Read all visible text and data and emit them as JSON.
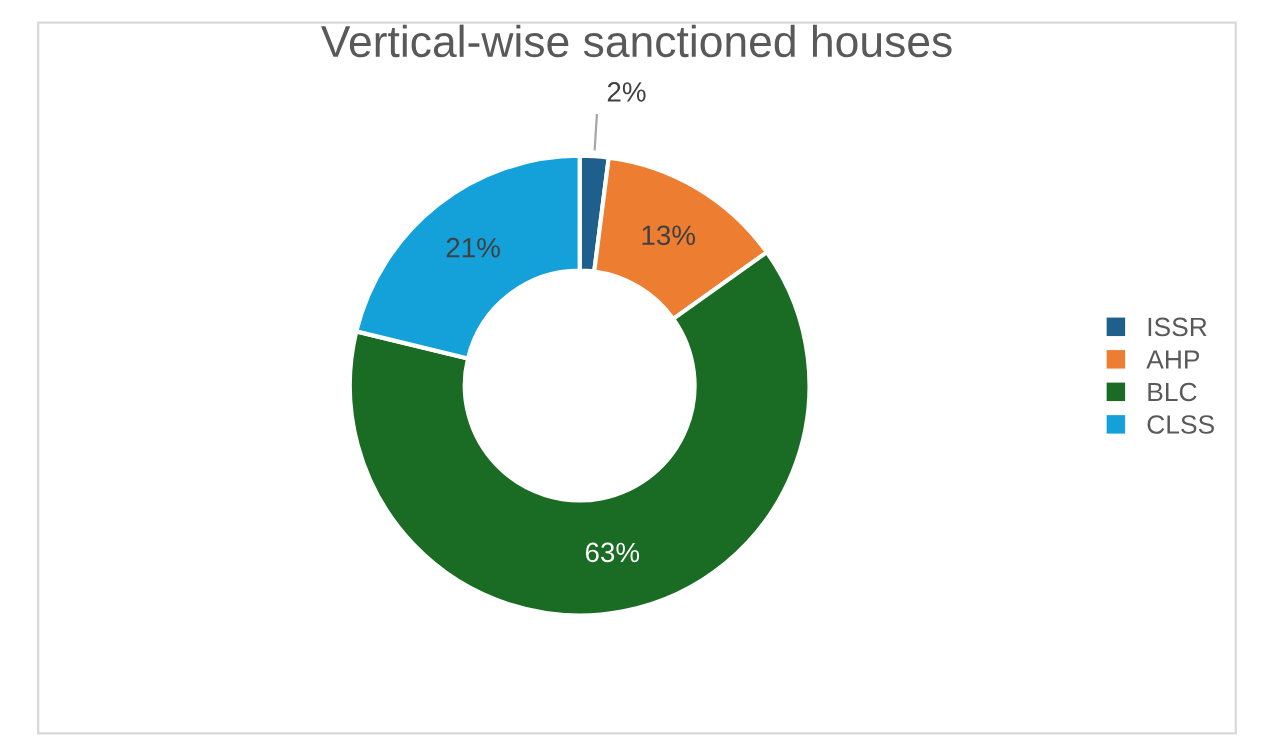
{
  "chart_data": {
    "type": "donut",
    "title": "Vertical-wise sanctioned houses",
    "categories": [
      "ISSR",
      "AHP",
      "BLC",
      "CLSS"
    ],
    "values": [
      2,
      13,
      63,
      21
    ],
    "colors": [
      "#1f5f8b",
      "#ed7d31",
      "#1a6b24",
      "#14a0d8"
    ],
    "value_labels": [
      "2%",
      "13%",
      "63%",
      "21%"
    ],
    "legend": "right"
  }
}
